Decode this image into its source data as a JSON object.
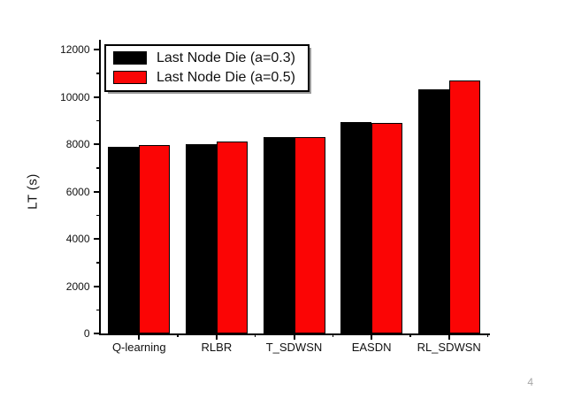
{
  "page": {
    "number": "4"
  },
  "chart_data": {
    "type": "bar",
    "title": "",
    "xlabel": "",
    "ylabel": "LT (s)",
    "categories": [
      "Q-learning",
      "RLBR",
      "T_SDWSN",
      "EASDN",
      "RL_SDWSN"
    ],
    "series": [
      {
        "name": "Last Node Die (a=0.3)",
        "color": "#000000",
        "values": [
          7900,
          8000,
          8300,
          8950,
          10300
        ]
      },
      {
        "name": "Last Node Die (a=0.5)",
        "color": "#fb0505",
        "values": [
          7950,
          8100,
          8300,
          8900,
          10700
        ]
      }
    ],
    "ylim": [
      0,
      12000
    ],
    "yticks": [
      0,
      2000,
      4000,
      6000,
      8000,
      10000,
      12000
    ],
    "minor_ytick_step": 1000,
    "grid": false,
    "legend_position": "top-left",
    "bar_outline_color": "#000000"
  }
}
